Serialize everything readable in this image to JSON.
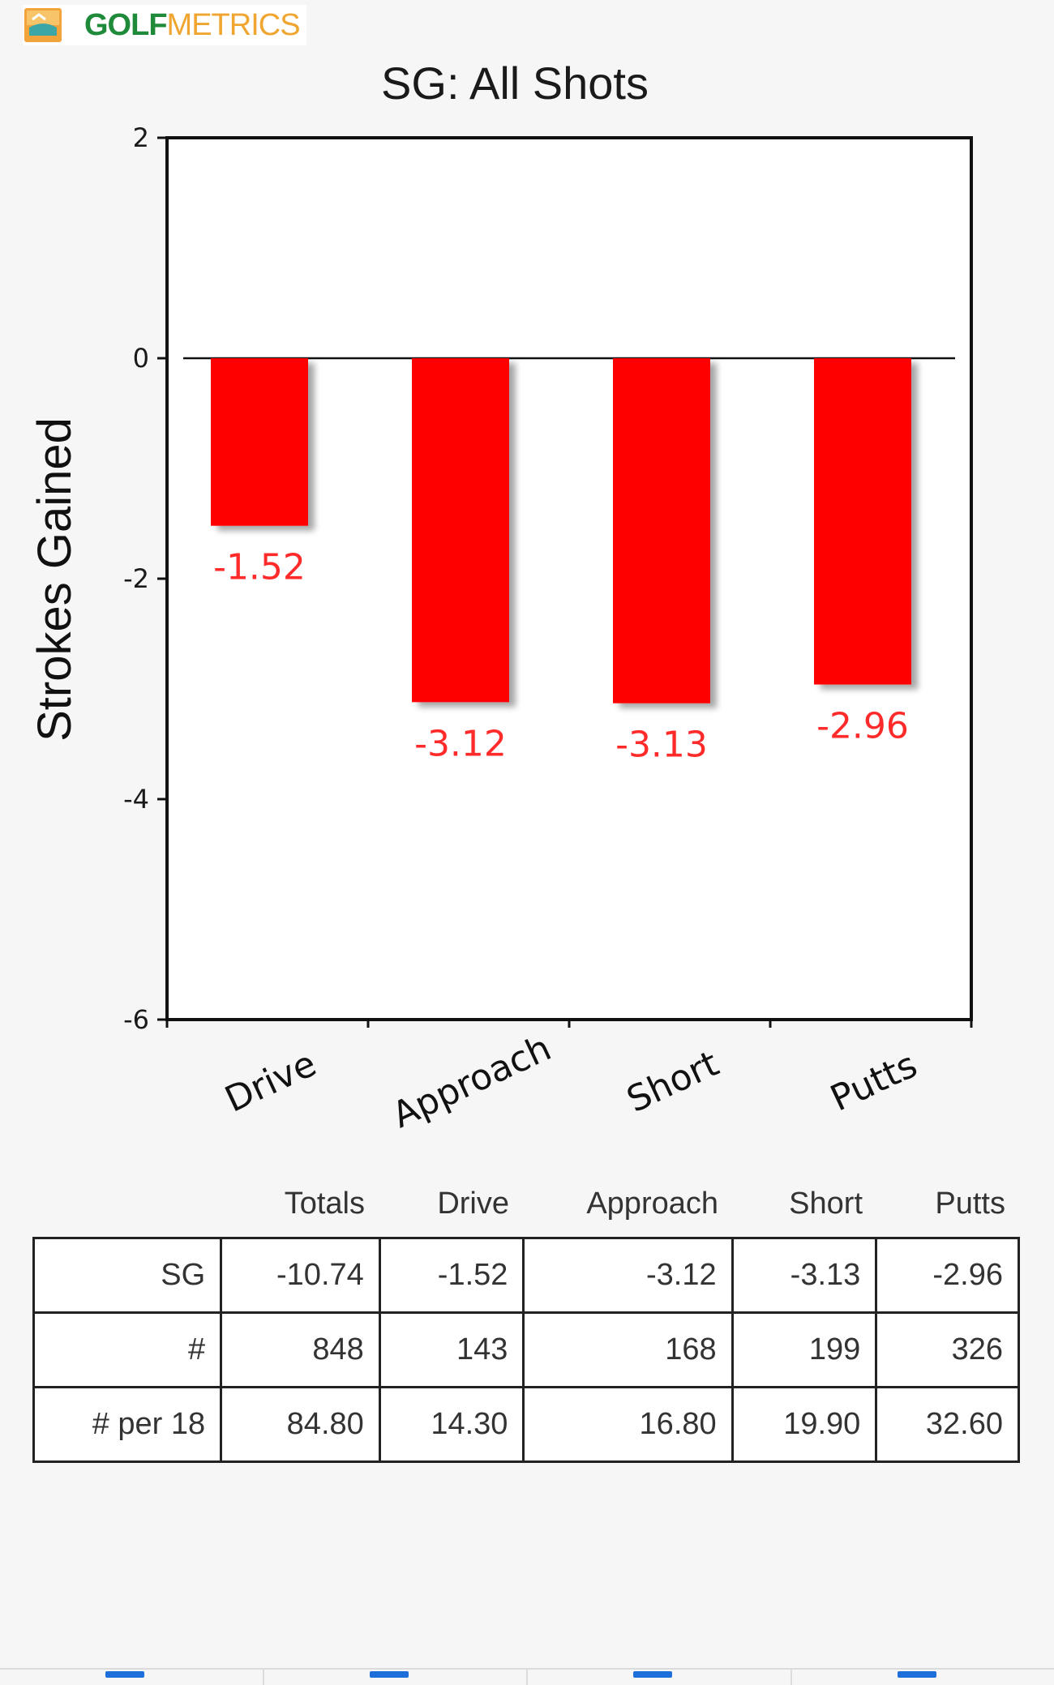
{
  "brand": {
    "golf": "GOLF",
    "metrics": "METRICS",
    "icon": "golfmetrics-logo-icon"
  },
  "chart_data": {
    "type": "bar",
    "title": "SG: All Shots",
    "xlabel": "",
    "ylabel": "Strokes Gained",
    "categories": [
      "Drive",
      "Approach",
      "Short",
      "Putts"
    ],
    "values": [
      -1.52,
      -3.12,
      -3.13,
      -2.96
    ],
    "data_labels": [
      "-1.52",
      "-3.12",
      "-3.13",
      "-2.96"
    ],
    "ylim": [
      -6,
      2
    ],
    "yticks": [
      "2",
      "0",
      "-2",
      "-4",
      "-6"
    ],
    "ytick_values": [
      2,
      0,
      -2,
      -4,
      -6
    ],
    "bar_color": "#ff0000",
    "label_color": "#ff2a2a",
    "grid": false,
    "legend": "none"
  },
  "table": {
    "headers": [
      "",
      "Totals",
      "Drive",
      "Approach",
      "Short",
      "Putts"
    ],
    "rows": [
      [
        "SG",
        "-10.74",
        "-1.52",
        "-3.12",
        "-3.13",
        "-2.96"
      ],
      [
        "#",
        "848",
        "143",
        "168",
        "199",
        "326"
      ],
      [
        "# per 18",
        "84.80",
        "14.30",
        "16.80",
        "19.90",
        "32.60"
      ]
    ]
  },
  "bottom_nav": {
    "tabs": [
      "tab-icon",
      "tab-icon",
      "tab-icon",
      "tab-icon"
    ]
  }
}
